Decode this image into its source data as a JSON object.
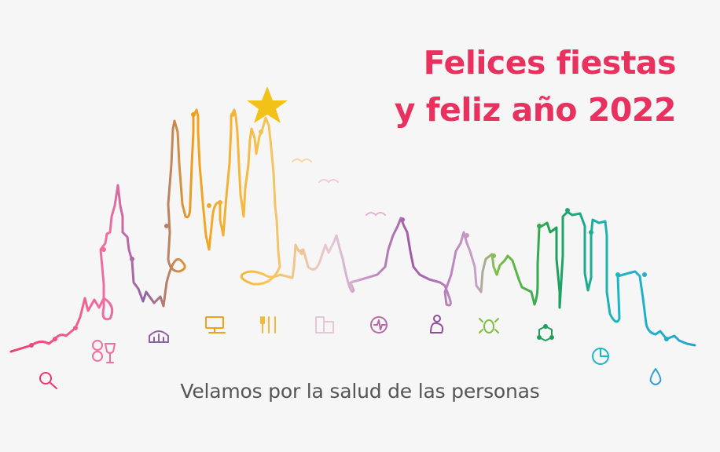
{
  "greeting": {
    "line1": "Felices fiestas",
    "line2": "y feliz año 2022",
    "color": "#e8315e"
  },
  "tagline": "Velamos por la salud de las personas",
  "skyline": {
    "gradient_colors": [
      "#e83a6a",
      "#ef6fa0",
      "#8d63a6",
      "#f0a11a",
      "#f6c453",
      "#e6c7d8",
      "#a05aa5",
      "#7cbf3e",
      "#1ea05a",
      "#1bb6c8",
      "#2a9fd0"
    ],
    "star_color": "#f2c219"
  },
  "icons": [
    {
      "name": "magnifier-icon",
      "color": "#e83a6a"
    },
    {
      "name": "pills-glass-icon",
      "color": "#ef6fa0"
    },
    {
      "name": "building-icon",
      "color": "#8d63a6"
    },
    {
      "name": "computer-icon",
      "color": "#f0a11a"
    },
    {
      "name": "cutlery-icon",
      "color": "#f6b73a"
    },
    {
      "name": "buildings-icon",
      "color": "#e6c7d8"
    },
    {
      "name": "apple-icon",
      "color": "#b56aa8"
    },
    {
      "name": "mother-child-icon",
      "color": "#8d4f9a"
    },
    {
      "name": "bug-icon",
      "color": "#7cbf3e"
    },
    {
      "name": "network-icon",
      "color": "#1ea05a"
    },
    {
      "name": "pie-chart-icon",
      "color": "#1bb6c8"
    },
    {
      "name": "water-drop-icon",
      "color": "#2a9fd0"
    }
  ]
}
